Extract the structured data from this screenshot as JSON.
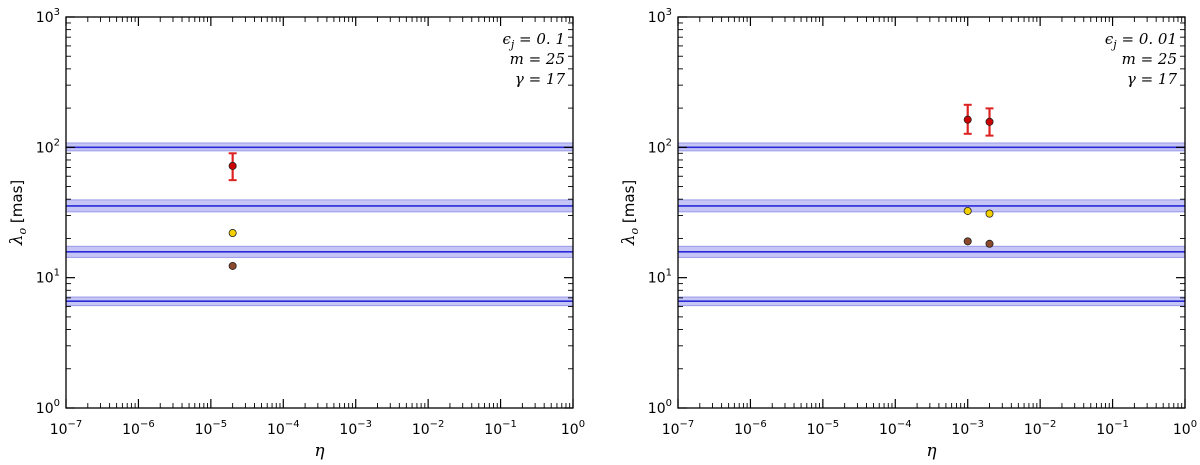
{
  "chart_data": [
    {
      "type": "scatter",
      "xlabel": "η",
      "ylabel_symbol": "λ",
      "ylabel_sub": "o",
      "ylabel_unit": "[mas]",
      "xscale": "log",
      "yscale": "log",
      "xlim": [
        1e-07,
        1
      ],
      "ylim": [
        1,
        1000
      ],
      "x_ticklabels": [
        "10^-7",
        "10^-6",
        "10^-5",
        "10^-4",
        "10^-3",
        "10^-2",
        "10^-1",
        "10^0"
      ],
      "y_ticklabels": [
        "10^0",
        "10^1",
        "10^2",
        "10^3"
      ],
      "annotations": [
        "ϵ_j = 0. 1",
        "m = 25",
        "γ = 17"
      ],
      "bands": [
        {
          "center": 6.6,
          "low": 6.1,
          "high": 7.1
        },
        {
          "center": 15.8,
          "low": 14.3,
          "high": 17.4
        },
        {
          "center": 35.5,
          "low": 32.0,
          "high": 39.5
        },
        {
          "center": 100,
          "low": 94,
          "high": 108
        }
      ],
      "series": [
        {
          "color": "#cc0000",
          "marker": "errorbar",
          "points": [
            {
              "x": 2e-05,
              "y": 72,
              "ylow": 56,
              "yhigh": 90
            }
          ]
        },
        {
          "color": "#f5d000",
          "marker": "circle",
          "points": [
            {
              "x": 2e-05,
              "y": 22
            }
          ]
        },
        {
          "color": "#8b4a2b",
          "marker": "circle",
          "points": [
            {
              "x": 2e-05,
              "y": 12.3
            }
          ]
        }
      ]
    },
    {
      "type": "scatter",
      "xlabel": "η",
      "ylabel_symbol": "λ",
      "ylabel_sub": "o",
      "ylabel_unit": "[mas]",
      "xscale": "log",
      "yscale": "log",
      "xlim": [
        1e-07,
        1
      ],
      "ylim": [
        1,
        1000
      ],
      "x_ticklabels": [
        "10^-7",
        "10^-6",
        "10^-5",
        "10^-4",
        "10^-3",
        "10^-2",
        "10^-1",
        "10^0"
      ],
      "y_ticklabels": [
        "10^0",
        "10^1",
        "10^2",
        "10^3"
      ],
      "annotations": [
        "ϵ_j = 0. 01",
        "m = 25",
        "γ = 17"
      ],
      "bands": [
        {
          "center": 6.6,
          "low": 6.1,
          "high": 7.1
        },
        {
          "center": 15.8,
          "low": 14.3,
          "high": 17.4
        },
        {
          "center": 35.5,
          "low": 32.0,
          "high": 39.5
        },
        {
          "center": 100,
          "low": 94,
          "high": 108
        }
      ],
      "series": [
        {
          "color": "#cc0000",
          "marker": "errorbar",
          "points": [
            {
              "x": 0.001,
              "y": 163,
              "ylow": 127,
              "yhigh": 212
            },
            {
              "x": 0.002,
              "y": 157,
              "ylow": 123,
              "yhigh": 199
            }
          ]
        },
        {
          "color": "#f5d000",
          "marker": "circle",
          "points": [
            {
              "x": 0.001,
              "y": 32.5
            },
            {
              "x": 0.002,
              "y": 31
            }
          ]
        },
        {
          "color": "#8b4a2b",
          "marker": "circle",
          "points": [
            {
              "x": 0.001,
              "y": 19
            },
            {
              "x": 0.002,
              "y": 18.2
            }
          ]
        }
      ]
    }
  ],
  "colors": {
    "band_fill": "#c6c6f6",
    "band_edge": "#9a9ae8",
    "band_line": "#2a2ad8",
    "errorbar": "#dd2222",
    "marker_edge": "#222222"
  }
}
